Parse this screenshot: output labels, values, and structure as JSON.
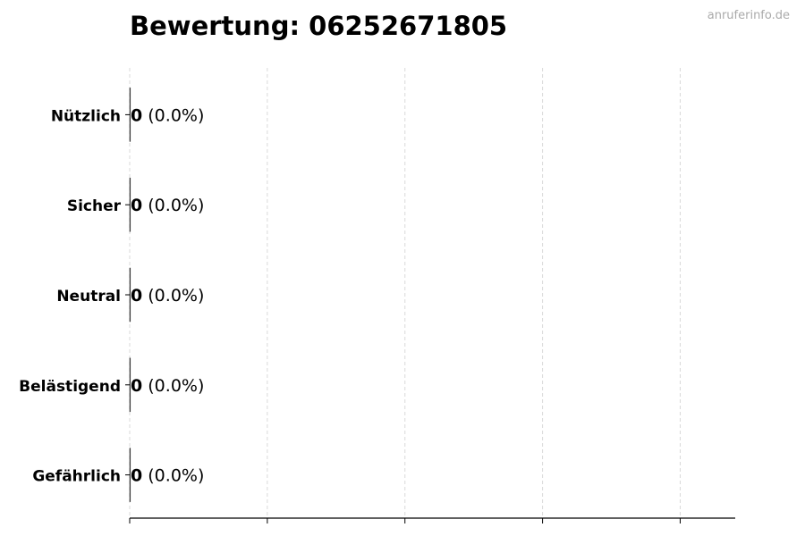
{
  "chart_data": {
    "type": "bar",
    "orientation": "horizontal",
    "title": "Bewertung: 06252671805",
    "watermark": "anruferinfo.de",
    "categories": [
      "Nützlich",
      "Sicher",
      "Neutral",
      "Belästigend",
      "Gefährlich"
    ],
    "values": [
      0,
      0,
      0,
      0,
      0
    ],
    "labels": [
      {
        "count": "0",
        "pct": "(0.0%)"
      },
      {
        "count": "0",
        "pct": "(0.0%)"
      },
      {
        "count": "0",
        "pct": "(0.0%)"
      },
      {
        "count": "0",
        "pct": "(0.0%)"
      },
      {
        "count": "0",
        "pct": "(0.0%)"
      }
    ],
    "xlim": [
      0,
      4.4
    ],
    "xticks": [
      0,
      1,
      2,
      3,
      4
    ],
    "xtick_labels_shown": false,
    "grid": "vertical dashed",
    "colors": {
      "grid": "#d9d9d9",
      "axis": "#000000",
      "watermark": "#aaaaaa"
    }
  }
}
